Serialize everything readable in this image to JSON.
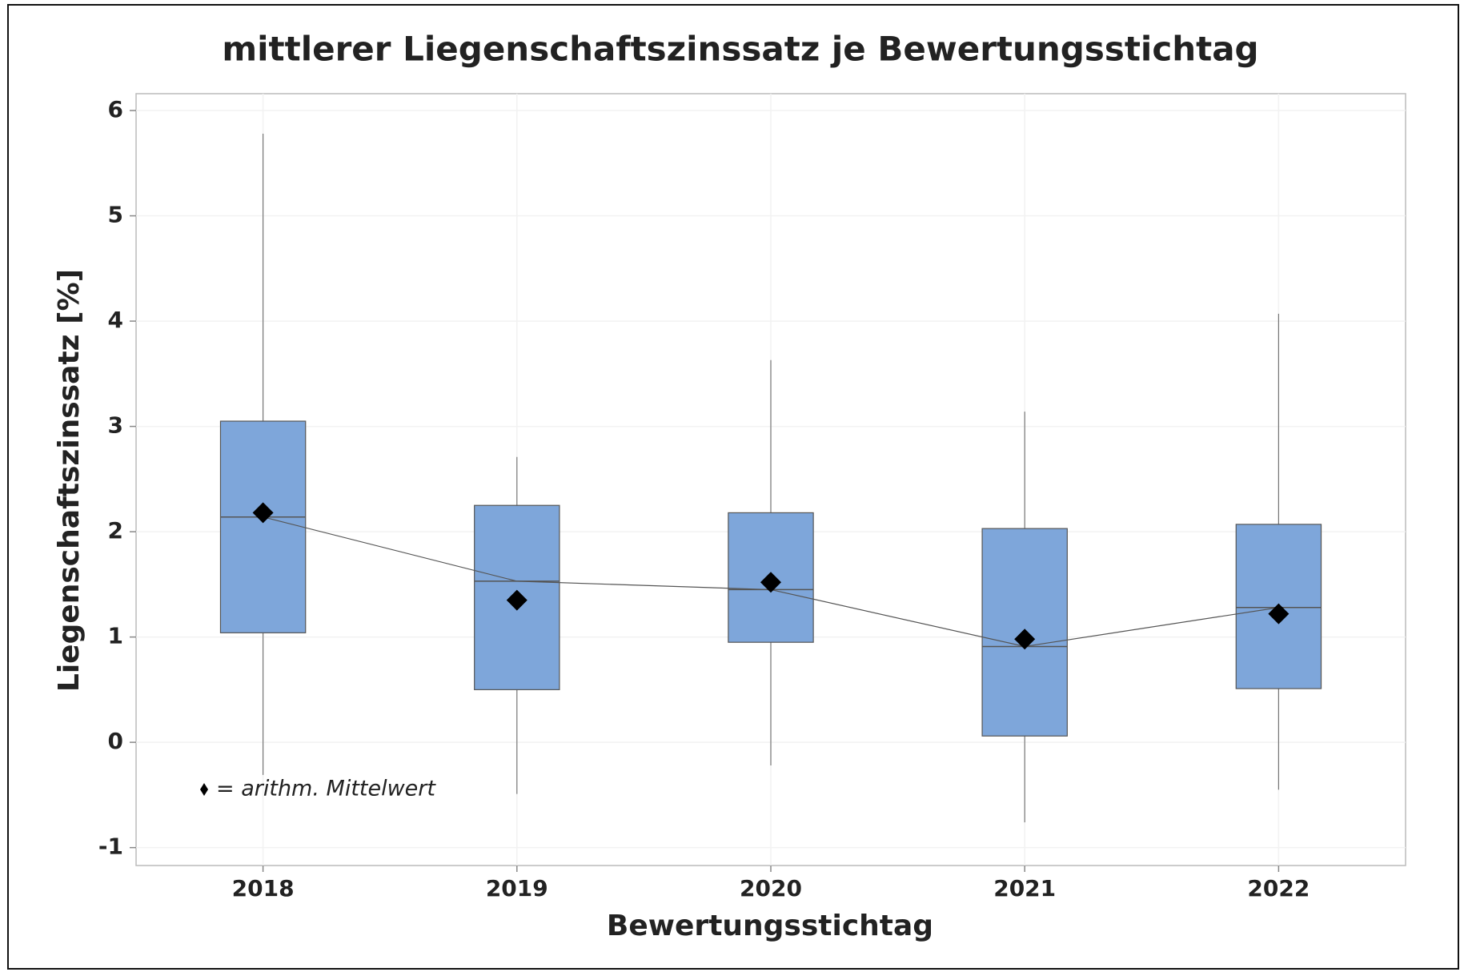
{
  "chart_data": {
    "type": "box",
    "title": "mittlerer Liegenschaftszinssatz je Bewertungsstichtag",
    "x_label": "Bewertungsstichtag",
    "y_label": "Liegenschaftszinssatz [%]",
    "legend_note": "= arithm. Mittelwert",
    "categories": [
      "2018",
      "2019",
      "2020",
      "2021",
      "2022"
    ],
    "whisker_high": [
      5.78,
      2.71,
      3.63,
      3.14,
      4.07
    ],
    "q3": [
      3.05,
      2.25,
      2.18,
      2.03,
      2.07
    ],
    "median": [
      2.14,
      1.53,
      1.45,
      0.91,
      1.28
    ],
    "q1": [
      1.04,
      0.5,
      0.95,
      0.06,
      0.51
    ],
    "whisker_low": [
      -0.31,
      -0.49,
      -0.22,
      -0.76,
      -0.45
    ],
    "mean": [
      2.18,
      1.35,
      1.52,
      0.98,
      1.22
    ],
    "color": "#7ea6da",
    "ylim": [
      -1.17,
      6.16
    ],
    "yticks": [
      -1,
      0,
      1,
      2,
      3,
      4,
      5,
      6
    ],
    "grid": true
  }
}
